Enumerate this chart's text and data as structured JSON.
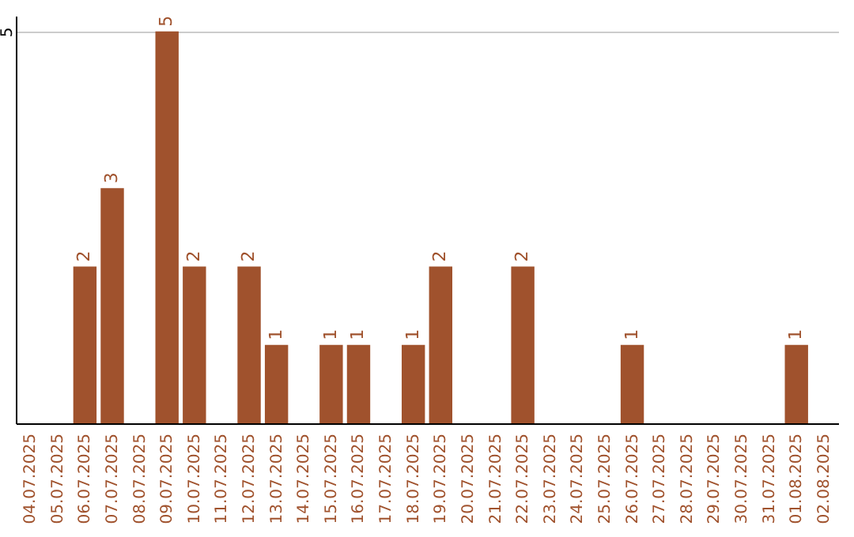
{
  "chart_data": {
    "type": "bar",
    "categories": [
      "04.07.2025",
      "05.07.2025",
      "06.07.2025",
      "07.07.2025",
      "08.07.2025",
      "09.07.2025",
      "10.07.2025",
      "11.07.2025",
      "12.07.2025",
      "13.07.2025",
      "14.07.2025",
      "15.07.2025",
      "16.07.2025",
      "17.07.2025",
      "18.07.2025",
      "19.07.2025",
      "20.07.2025",
      "21.07.2025",
      "22.07.2025",
      "23.07.2025",
      "24.07.2025",
      "25.07.2025",
      "26.07.2025",
      "27.07.2025",
      "28.07.2025",
      "29.07.2025",
      "30.07.2025",
      "31.07.2025",
      "01.08.2025",
      "02.08.2025"
    ],
    "values": [
      0,
      0,
      2,
      3,
      0,
      5,
      2,
      0,
      2,
      1,
      0,
      1,
      1,
      0,
      1,
      2,
      0,
      0,
      2,
      0,
      0,
      0,
      1,
      0,
      0,
      0,
      0,
      0,
      1,
      0
    ],
    "value_labels": [
      null,
      null,
      "2",
      "3",
      null,
      "5",
      "2",
      null,
      "2",
      "1",
      null,
      "1",
      "1",
      null,
      "1",
      "2",
      null,
      null,
      "2",
      null,
      null,
      null,
      "1",
      null,
      null,
      null,
      null,
      null,
      "1",
      null
    ],
    "color": "#a0522d",
    "ylim": [
      0,
      5.2
    ],
    "yticks": [
      5
    ],
    "grid": "y"
  }
}
